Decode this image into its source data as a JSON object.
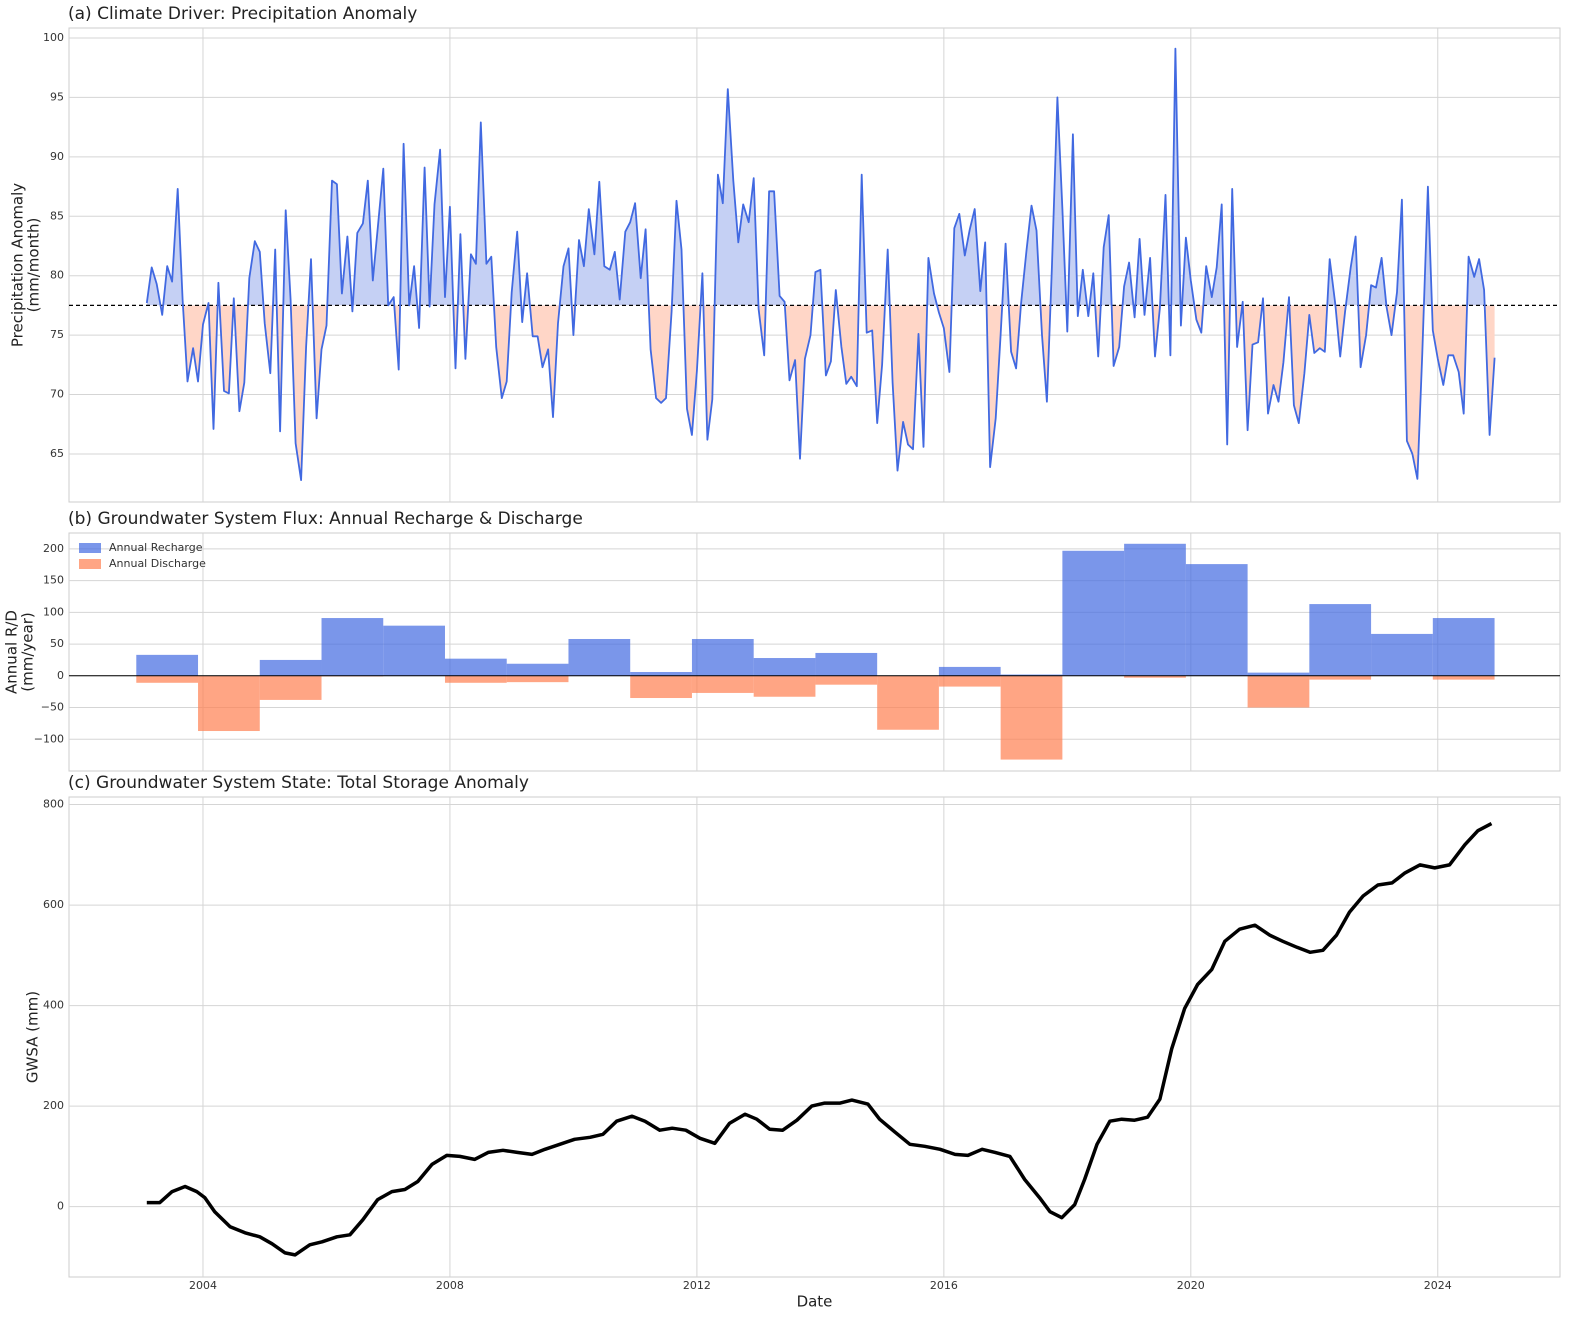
{
  "chart_data": [
    {
      "type": "line",
      "title": "(a) Climate Driver: Precipitation Anomaly",
      "ylabel": [
        "Precipitation Anomaly",
        "(mm/month)"
      ],
      "x": [
        2003.09,
        2003.17,
        2003.25,
        2003.34,
        2003.42,
        2003.5,
        2003.59,
        2003.67,
        2003.75,
        2003.84,
        2003.92,
        2004,
        2004.09,
        2004.17,
        2004.25,
        2004.34,
        2004.42,
        2004.5,
        2004.59,
        2004.67,
        2004.75,
        2004.84,
        2004.92,
        2005,
        2005.09,
        2005.17,
        2005.25,
        2005.34,
        2005.42,
        2005.5,
        2005.59,
        2005.67,
        2005.75,
        2005.84,
        2005.92,
        2006,
        2006.09,
        2006.17,
        2006.25,
        2006.34,
        2006.42,
        2006.5,
        2006.59,
        2006.67,
        2006.75,
        2006.84,
        2006.92,
        2007,
        2007.09,
        2007.17,
        2007.25,
        2007.34,
        2007.42,
        2007.5,
        2007.59,
        2007.67,
        2007.75,
        2007.84,
        2007.92,
        2008,
        2008.09,
        2008.17,
        2008.25,
        2008.34,
        2008.42,
        2008.5,
        2008.59,
        2008.67,
        2008.75,
        2008.84,
        2008.92,
        2009,
        2009.09,
        2009.17,
        2009.25,
        2009.34,
        2009.42,
        2009.5,
        2009.59,
        2009.67,
        2009.75,
        2009.84,
        2009.92,
        2010,
        2010.09,
        2010.17,
        2010.25,
        2010.34,
        2010.42,
        2010.5,
        2010.59,
        2010.67,
        2010.75,
        2010.84,
        2010.92,
        2011,
        2011.09,
        2011.17,
        2011.25,
        2011.34,
        2011.42,
        2011.5,
        2011.59,
        2011.67,
        2011.75,
        2011.84,
        2011.92,
        2012,
        2012.09,
        2012.17,
        2012.25,
        2012.34,
        2012.42,
        2012.5,
        2012.59,
        2012.67,
        2012.75,
        2012.84,
        2012.92,
        2013,
        2013.09,
        2013.17,
        2013.25,
        2013.34,
        2013.42,
        2013.5,
        2013.59,
        2013.67,
        2013.75,
        2013.84,
        2013.92,
        2014,
        2014.09,
        2014.17,
        2014.25,
        2014.34,
        2014.42,
        2014.5,
        2014.59,
        2014.67,
        2014.75,
        2014.84,
        2014.92,
        2015,
        2015.09,
        2015.17,
        2015.25,
        2015.34,
        2015.42,
        2015.5,
        2015.59,
        2015.67,
        2015.75,
        2015.84,
        2015.92,
        2016,
        2016.09,
        2016.17,
        2016.25,
        2016.34,
        2016.42,
        2016.5,
        2016.59,
        2016.67,
        2016.75,
        2016.84,
        2016.92,
        2017,
        2017.09,
        2017.17,
        2017.25,
        2017.34,
        2017.42,
        2017.5,
        2017.59,
        2017.67,
        2017.75,
        2017.84,
        2017.92,
        2018,
        2018.09,
        2018.17,
        2018.25,
        2018.34,
        2018.42,
        2018.5,
        2018.59,
        2018.67,
        2018.75,
        2018.84,
        2018.92,
        2019,
        2019.09,
        2019.17,
        2019.25,
        2019.34,
        2019.42,
        2019.5,
        2019.59,
        2019.67,
        2019.75,
        2019.84,
        2019.92,
        2020,
        2020.09,
        2020.17,
        2020.25,
        2020.34,
        2020.42,
        2020.5,
        2020.59,
        2020.67,
        2020.75,
        2020.84,
        2020.92,
        2021,
        2021.09,
        2021.17,
        2021.25,
        2021.34,
        2021.42,
        2021.5,
        2021.59,
        2021.67,
        2021.75,
        2021.84,
        2021.92,
        2022,
        2022.09,
        2022.17,
        2022.25,
        2022.34,
        2022.42,
        2022.5,
        2022.59,
        2022.67,
        2022.75,
        2022.84,
        2022.92,
        2023,
        2023.09,
        2023.17,
        2023.25,
        2023.34,
        2023.42,
        2023.5,
        2023.59,
        2023.67,
        2023.75,
        2023.84,
        2023.92,
        2024,
        2024.09,
        2024.17,
        2024.25,
        2024.34,
        2024.42,
        2024.5,
        2024.59,
        2024.67,
        2024.75,
        2024.84,
        2024.92
      ],
      "values": [
        77.7,
        80.7,
        79.3,
        76.7,
        80.8,
        79.5,
        87.3,
        78,
        71.1,
        73.9,
        71.1,
        75.9,
        77.7,
        67.1,
        79.4,
        70.3,
        70.1,
        78.1,
        68.6,
        71,
        79.8,
        82.9,
        82,
        76,
        71.8,
        82.2,
        66.9,
        85.5,
        78,
        65.9,
        62.8,
        74,
        81.4,
        68,
        73.8,
        75.8,
        88,
        87.7,
        78.5,
        83.3,
        77,
        83.6,
        84.4,
        88,
        79.6,
        84.5,
        89,
        77.5,
        78.2,
        72.1,
        91.1,
        77.5,
        80.8,
        75.6,
        89.1,
        77.4,
        86,
        90.6,
        78.2,
        85.8,
        72.2,
        83.5,
        73,
        81.8,
        81,
        92.9,
        81,
        81.6,
        74,
        69.7,
        71.1,
        78.6,
        83.7,
        76.1,
        80.2,
        74.9,
        74.9,
        72.3,
        73.8,
        68.1,
        76,
        80.8,
        82.3,
        75,
        83,
        80.8,
        85.6,
        81.8,
        87.9,
        80.8,
        80.5,
        82,
        78,
        83.7,
        84.5,
        86.1,
        79.8,
        83.9,
        73.8,
        69.7,
        69.3,
        69.7,
        77,
        86.3,
        82.2,
        68.8,
        66.6,
        72,
        80.2,
        66.2,
        69.6,
        88.5,
        86.1,
        95.7,
        88,
        82.8,
        86,
        84.5,
        88.2,
        77.2,
        73.3,
        87.1,
        87.1,
        78.3,
        77.8,
        71.2,
        72.9,
        64.6,
        73,
        75,
        80.3,
        80.5,
        71.6,
        72.8,
        78.8,
        74,
        70.9,
        71.5,
        70.7,
        88.5,
        75.2,
        75.4,
        67.6,
        72.5,
        82.2,
        71,
        63.6,
        67.7,
        65.8,
        65.4,
        75.1,
        65.6,
        81.5,
        78.5,
        76.9,
        75.6,
        71.9,
        84,
        85.2,
        81.7,
        83.9,
        85.6,
        78.7,
        82.8,
        63.9,
        68,
        75,
        82.7,
        73.6,
        72.2,
        77.6,
        82.2,
        85.9,
        83.8,
        75,
        69.4,
        80.7,
        95,
        85.6,
        75.3,
        91.9,
        76.6,
        80.5,
        76.6,
        80.2,
        73.2,
        82.4,
        85.1,
        72.4,
        74,
        79.1,
        81.1,
        76.5,
        83.1,
        76.7,
        81.5,
        73.2,
        77.3,
        86.8,
        73.3,
        99.1,
        75.8,
        83.2,
        79.6,
        76.3,
        75.2,
        80.8,
        78.2,
        80.7,
        86,
        65.8,
        87.3,
        74,
        77.8,
        67,
        74.2,
        74.4,
        78.1,
        68.4,
        70.8,
        69.4,
        72.7,
        78.2,
        69.1,
        67.6,
        71.8,
        76.7,
        73.5,
        73.9,
        73.6,
        81.4,
        77.6,
        73.2,
        77,
        80.7,
        83.3,
        72.3,
        75,
        79.2,
        79,
        81.5,
        77.4,
        75,
        78.6,
        86.4,
        66.1,
        65,
        62.9,
        73.5,
        87.5,
        75.4,
        73,
        70.8,
        73.3,
        73.3,
        71.9,
        68.4,
        81.6,
        79.9,
        81.4,
        78.8,
        66.6,
        73.1
      ],
      "color": "#4169e1",
      "baseline": 77.5,
      "fill_above_color": "#c5d0f4",
      "fill_below_color": "#ffd6c7",
      "xlim": [
        2001.83,
        2025.98
      ],
      "xticks": [
        2004,
        2008,
        2012,
        2016,
        2020,
        2024
      ],
      "xtick_labels": false,
      "ylim": [
        60.96,
        100.84
      ],
      "yticks": [
        65,
        70,
        75,
        80,
        85,
        90,
        95,
        100
      ],
      "grid": true
    },
    {
      "type": "bar",
      "title": "(b) Groundwater System Flux: Annual Recharge & Discharge",
      "ylabel": [
        "Annual R/D",
        "(mm/year)"
      ],
      "x": [
        2003,
        2004,
        2005,
        2006,
        2007,
        2008,
        2009,
        2010,
        2011,
        2012,
        2013,
        2014,
        2015,
        2016,
        2017,
        2018,
        2019,
        2020,
        2021,
        2022,
        2023,
        2024
      ],
      "series": [
        {
          "name": "Annual Recharge",
          "color": "#4169e1",
          "values": [
            33,
            0,
            25,
            91,
            79,
            27,
            19,
            58,
            6,
            58,
            28,
            36,
            0,
            14,
            2,
            197,
            208,
            176,
            5,
            113,
            66,
            91
          ]
        },
        {
          "name": "Annual Discharge",
          "color": "#ff7f50",
          "values": [
            -11,
            -87,
            -38,
            -1,
            0,
            -11,
            -10,
            0,
            -35,
            -27,
            -33,
            -14,
            -85,
            -17,
            -132,
            0,
            -3,
            0,
            -50,
            -6,
            0,
            -6
          ]
        }
      ],
      "legend": "upper left",
      "xlim": [
        2001.83,
        2025.98
      ],
      "xticks": [
        2004,
        2008,
        2012,
        2016,
        2020,
        2024
      ],
      "xtick_labels": false,
      "ylim": [
        -150,
        225
      ],
      "yticks": [
        {
          "value": -100,
          "label": "−100"
        },
        {
          "value": -50,
          "label": "−50"
        },
        0,
        50,
        100,
        150,
        200
      ],
      "grid": true
    },
    {
      "type": "line",
      "title": "(c) Groundwater System State: Total Storage Anomaly",
      "ylabel": "GWSA (mm)",
      "xlabel": "Date",
      "x": [
        2003.09,
        2003.3,
        2003.5,
        2003.71,
        2003.9,
        2004.03,
        2004.19,
        2004.44,
        2004.68,
        2004.92,
        2005.12,
        2005.33,
        2005.49,
        2005.73,
        2005.93,
        2006.17,
        2006.38,
        2006.59,
        2006.83,
        2007.06,
        2007.27,
        2007.48,
        2007.71,
        2007.95,
        2008.16,
        2008.4,
        2008.62,
        2008.86,
        2009.09,
        2009.33,
        2009.54,
        2009.78,
        2010.02,
        2010.27,
        2010.48,
        2010.7,
        2010.95,
        2011.16,
        2011.4,
        2011.6,
        2011.82,
        2012.05,
        2012.29,
        2012.53,
        2012.78,
        2012.97,
        2013.18,
        2013.39,
        2013.62,
        2013.86,
        2014.07,
        2014.32,
        2014.51,
        2014.77,
        2014.96,
        2015.21,
        2015.45,
        2015.69,
        2015.94,
        2016.18,
        2016.39,
        2016.62,
        2016.83,
        2017.07,
        2017.31,
        2017.55,
        2017.72,
        2017.91,
        2018.12,
        2018.28,
        2018.48,
        2018.69,
        2018.88,
        2019.09,
        2019.3,
        2019.5,
        2019.69,
        2019.9,
        2020.11,
        2020.34,
        2020.55,
        2020.79,
        2021.04,
        2021.28,
        2021.49,
        2021.72,
        2021.93,
        2022.14,
        2022.36,
        2022.57,
        2022.79,
        2023.03,
        2023.26,
        2023.47,
        2023.71,
        2023.95,
        2024.19,
        2024.44,
        2024.65,
        2024.87
      ],
      "values": [
        8,
        8,
        30,
        40,
        30,
        18,
        -10,
        -40,
        -52,
        -60,
        -74,
        -92,
        -96,
        -76,
        -70,
        -60,
        -56,
        -26,
        14,
        30,
        34,
        50,
        84,
        102,
        100,
        94,
        108,
        112,
        108,
        104,
        114,
        124,
        134,
        138,
        144,
        170,
        180,
        170,
        152,
        156,
        152,
        136,
        126,
        166,
        184,
        174,
        154,
        152,
        172,
        200,
        206,
        206,
        212,
        204,
        174,
        148,
        124,
        120,
        114,
        104,
        102,
        114,
        108,
        100,
        54,
        18,
        -10,
        -22,
        4,
        54,
        124,
        170,
        174,
        172,
        178,
        214,
        314,
        394,
        442,
        472,
        528,
        552,
        560,
        540,
        528,
        516,
        506,
        510,
        540,
        586,
        618,
        640,
        644,
        664,
        680,
        674,
        680,
        720,
        748,
        762
      ],
      "color": "#000000",
      "xlim": [
        2001.83,
        2025.98
      ],
      "xticks": [
        2004,
        2008,
        2012,
        2016,
        2020,
        2024
      ],
      "xtick_labels": true,
      "ylim": [
        -140,
        815
      ],
      "yticks": [
        0,
        200,
        400,
        600,
        800
      ],
      "grid": true
    }
  ]
}
